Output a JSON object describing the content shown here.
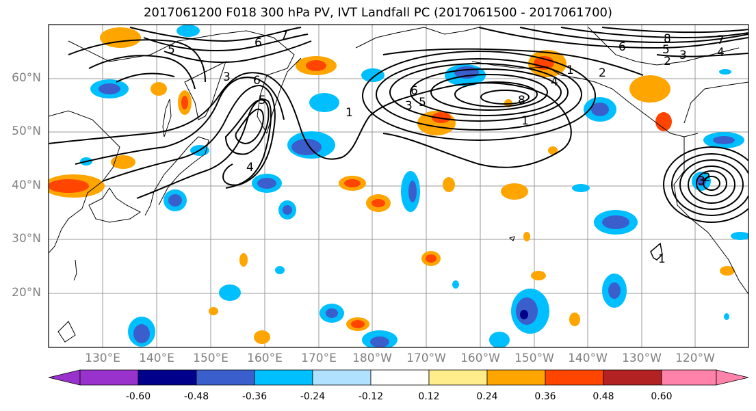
{
  "title": "2017061200 F018 300 hPa PV, IVT Landfall PC (2017061500 - 2017061700)",
  "axes": {
    "lat_labels": [
      "60°N",
      "50°N",
      "40°N",
      "30°N",
      "20°N"
    ],
    "lon_labels": [
      "130°E",
      "140°E",
      "150°E",
      "160°E",
      "170°E",
      "180°W",
      "170°W",
      "160°W",
      "150°W",
      "140°W",
      "130°W",
      "120°W"
    ]
  },
  "colorbar": {
    "tick_labels": [
      "-0.60",
      "-0.48",
      "-0.36",
      "-0.24",
      "-0.12",
      "0.12",
      "0.24",
      "0.36",
      "0.48",
      "0.60"
    ],
    "colors": [
      "#9932cc",
      "#00008b",
      "#3a5fcd",
      "#00bfff",
      "#b0e2ff",
      "#ffffff",
      "#ffec8b",
      "#ffa500",
      "#ff4500",
      "#b22222",
      "#ff82ab"
    ]
  },
  "contour_labels": [
    "5",
    "6",
    "7",
    "3",
    "6",
    "5",
    "4",
    "1",
    "6",
    "5",
    "8",
    "1",
    "2",
    "4",
    "3",
    "8",
    "7",
    "6",
    "5",
    "3",
    "4",
    "2",
    "2",
    "3",
    "1",
    "1"
  ]
}
